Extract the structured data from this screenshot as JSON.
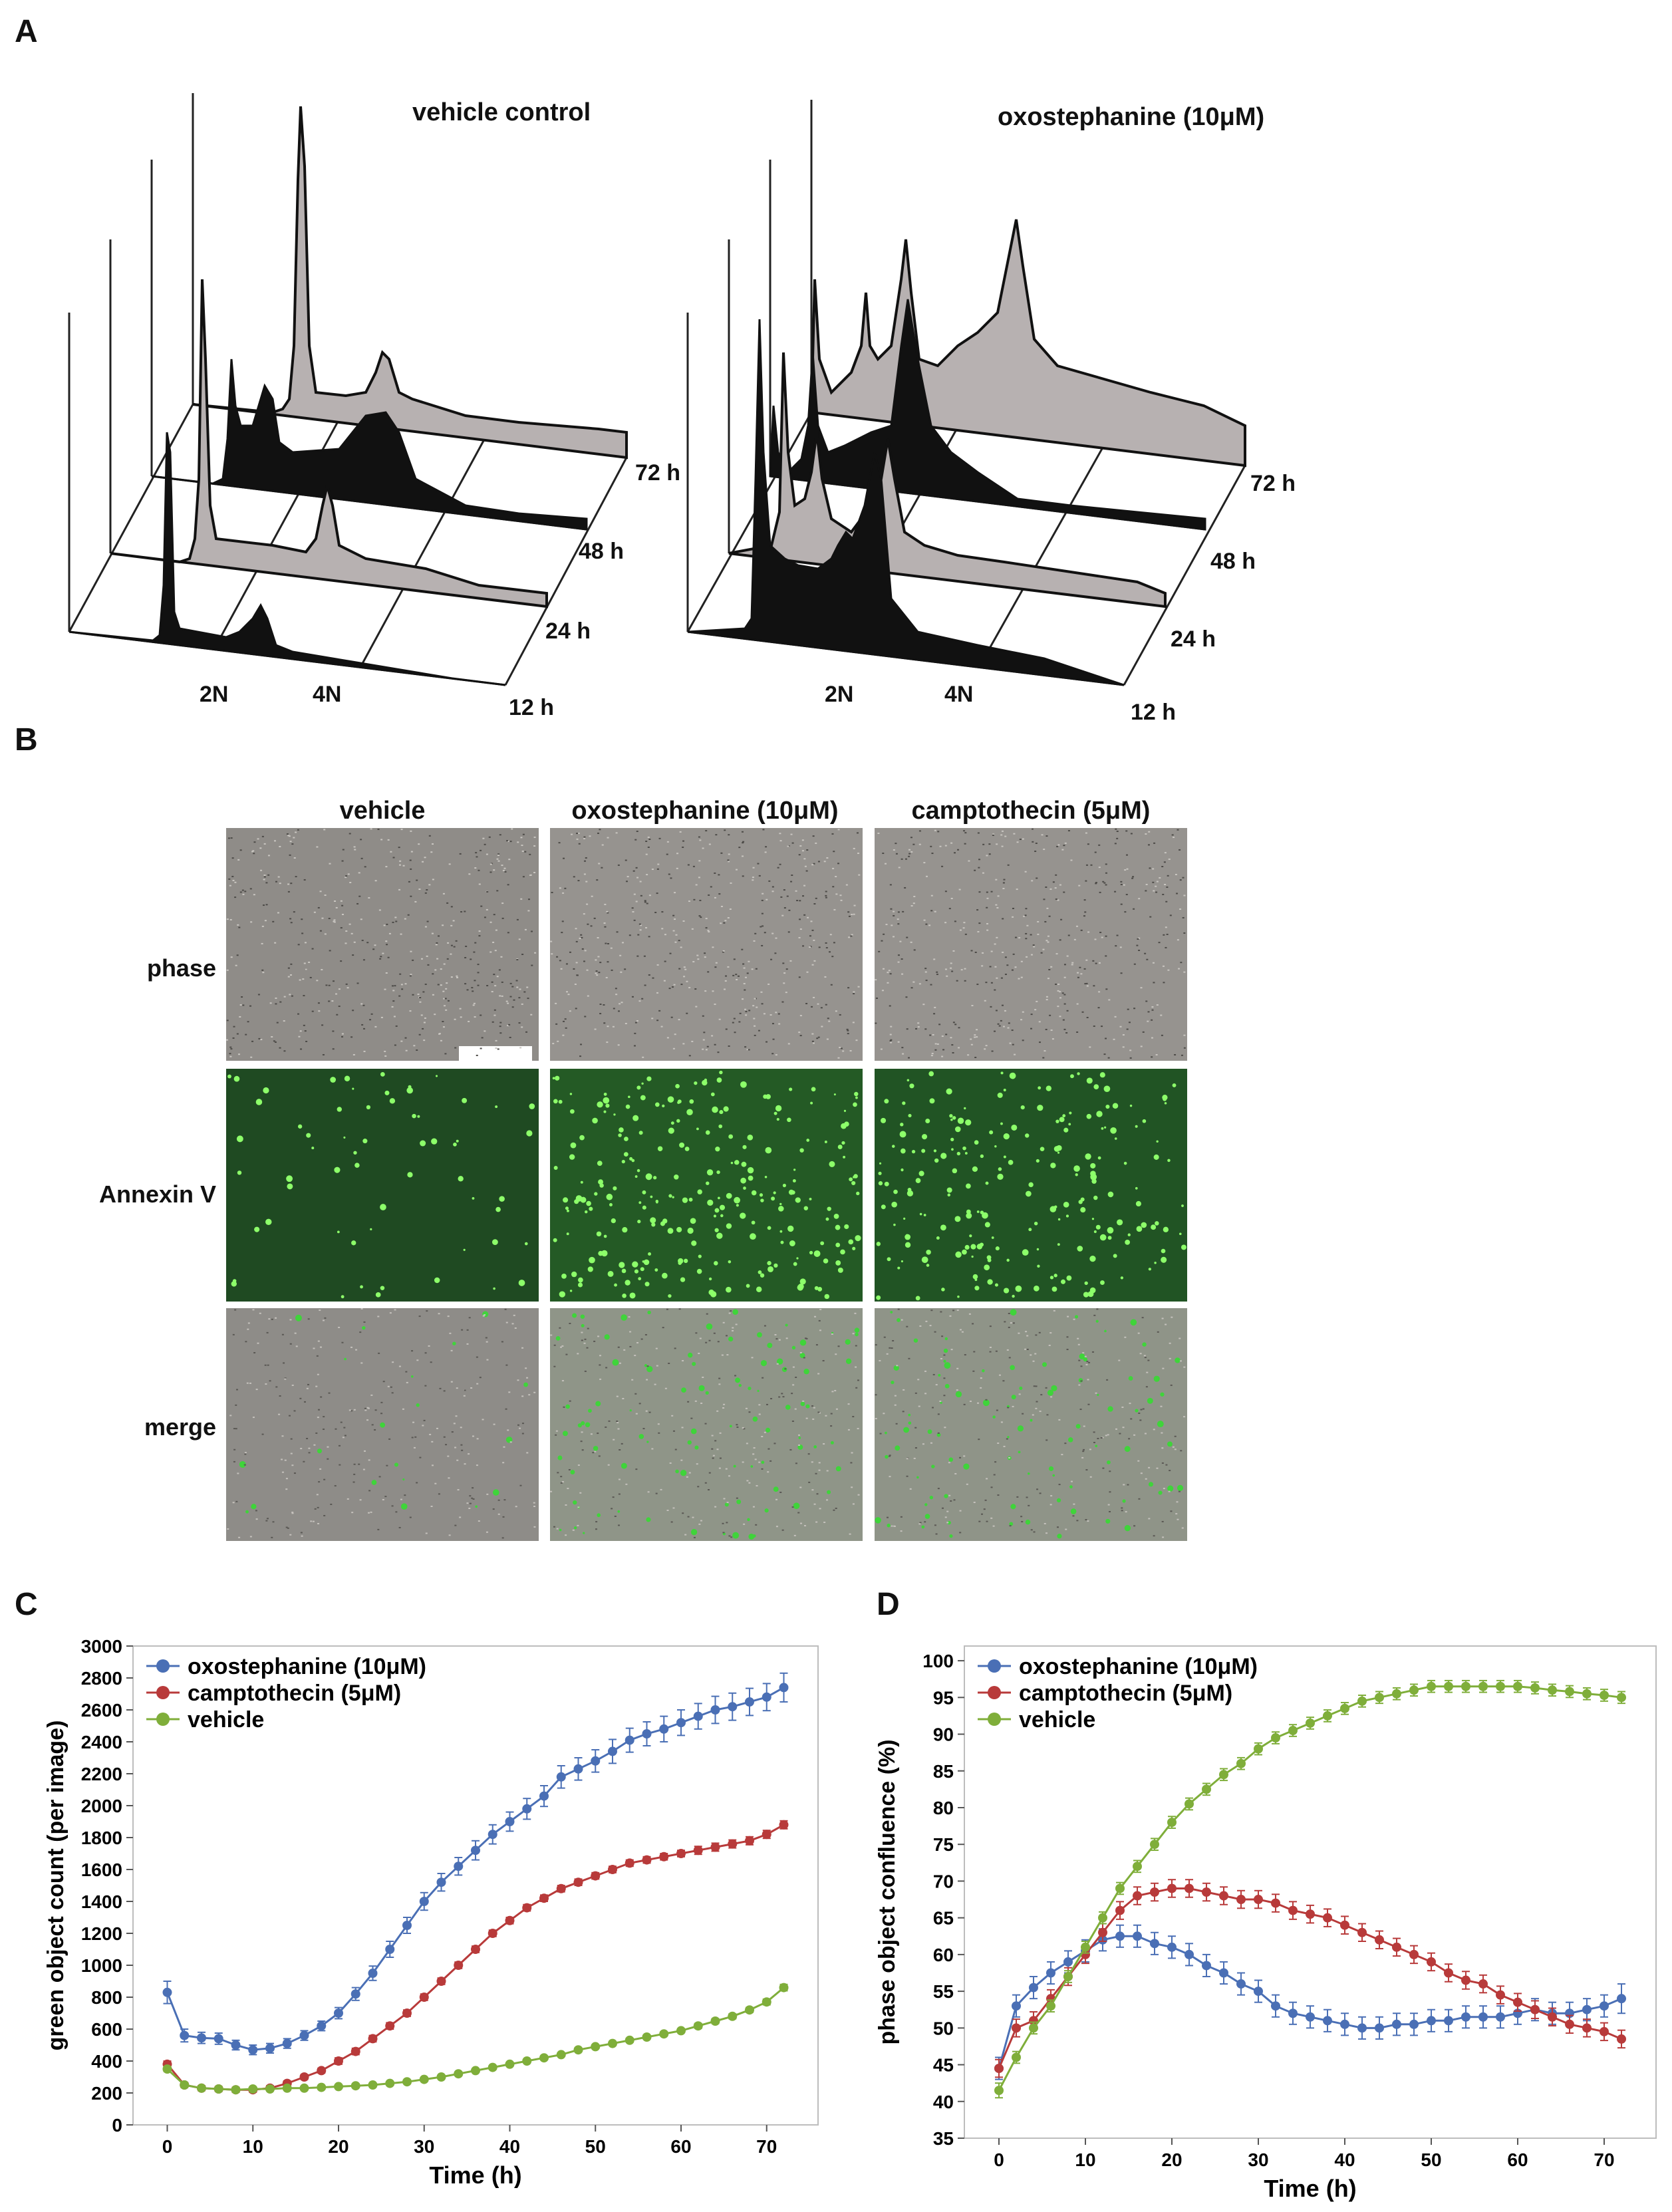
{
  "panelA": {
    "letter": "A",
    "left": {
      "title": "vehicle control",
      "time_labels": [
        "72 h",
        "48 h",
        "24 h",
        "12 h"
      ],
      "x_labels": [
        "2N",
        "4N"
      ]
    },
    "right": {
      "title": "oxostephanine (10μM)",
      "time_labels": [
        "72 h",
        "48 h",
        "24 h",
        "12 h"
      ],
      "x_labels": [
        "2N",
        "4N"
      ]
    }
  },
  "panelB": {
    "letter": "B",
    "columns": [
      "vehicle",
      "oxostephanine (10μM)",
      "camptothecin (5μM)"
    ],
    "rows": [
      "phase",
      "Annexin V",
      "merge"
    ]
  },
  "panelC": {
    "letter": "C",
    "ylabel": "green object count (per image)",
    "xlabel": "Time (h)"
  },
  "panelD": {
    "letter": "D",
    "ylabel": "phase object confluence (%)",
    "xlabel": "Time (h)"
  },
  "colors": {
    "oxo": "#4a6fb5",
    "campto": "#b83a3a",
    "vehicle": "#7fae3a"
  },
  "chart_data": [
    {
      "type": "line",
      "title": "",
      "xlabel": "Time (h)",
      "ylabel": "green object count (per image)",
      "xlim": [
        -4,
        76
      ],
      "ylim": [
        0,
        3000
      ],
      "xticks": [
        0,
        10,
        20,
        30,
        40,
        50,
        60,
        70
      ],
      "yticks": [
        0,
        200,
        400,
        600,
        800,
        1000,
        1200,
        1400,
        1600,
        1800,
        2000,
        2200,
        2400,
        2600,
        2800,
        3000
      ],
      "legend": "top-left",
      "x": [
        0,
        2,
        4,
        6,
        8,
        10,
        12,
        14,
        16,
        18,
        20,
        22,
        24,
        26,
        28,
        30,
        32,
        34,
        36,
        38,
        40,
        42,
        44,
        46,
        48,
        50,
        52,
        54,
        56,
        58,
        60,
        62,
        64,
        66,
        68,
        70,
        72
      ],
      "series": [
        {
          "name": "oxostephanine (10μM)",
          "color_key": "oxo",
          "values": [
            830,
            560,
            545,
            540,
            500,
            470,
            480,
            510,
            560,
            620,
            700,
            820,
            950,
            1100,
            1250,
            1400,
            1520,
            1620,
            1720,
            1820,
            1900,
            1980,
            2060,
            2180,
            2230,
            2280,
            2340,
            2410,
            2450,
            2480,
            2520,
            2560,
            2600,
            2620,
            2650,
            2680,
            2740
          ],
          "errors": [
            70,
            40,
            35,
            35,
            30,
            30,
            30,
            30,
            30,
            30,
            35,
            40,
            45,
            50,
            50,
            55,
            55,
            55,
            60,
            60,
            60,
            65,
            65,
            70,
            70,
            70,
            75,
            75,
            75,
            80,
            80,
            80,
            85,
            85,
            85,
            85,
            90
          ]
        },
        {
          "name": "camptothecin (5μM)",
          "color_key": "campto",
          "values": [
            380,
            250,
            230,
            225,
            220,
            220,
            230,
            260,
            300,
            340,
            400,
            460,
            540,
            620,
            700,
            800,
            900,
            1000,
            1100,
            1200,
            1280,
            1360,
            1420,
            1480,
            1520,
            1560,
            1600,
            1640,
            1660,
            1680,
            1700,
            1720,
            1740,
            1760,
            1780,
            1820,
            1880
          ],
          "errors": [
            20,
            15,
            15,
            15,
            15,
            15,
            15,
            15,
            15,
            15,
            20,
            20,
            20,
            20,
            20,
            20,
            20,
            20,
            20,
            20,
            20,
            20,
            20,
            20,
            20,
            20,
            20,
            20,
            20,
            20,
            20,
            25,
            25,
            25,
            25,
            25,
            25
          ]
        },
        {
          "name": "vehicle",
          "color_key": "vehicle",
          "values": [
            350,
            250,
            230,
            225,
            220,
            225,
            225,
            230,
            230,
            235,
            240,
            245,
            250,
            260,
            270,
            285,
            300,
            320,
            340,
            360,
            380,
            400,
            420,
            440,
            470,
            490,
            510,
            530,
            550,
            570,
            590,
            620,
            650,
            680,
            720,
            770,
            860
          ],
          "errors": [
            15,
            10,
            10,
            10,
            10,
            10,
            10,
            10,
            10,
            10,
            10,
            10,
            10,
            10,
            10,
            10,
            10,
            10,
            10,
            10,
            10,
            10,
            10,
            10,
            10,
            10,
            10,
            12,
            12,
            12,
            12,
            15,
            15,
            15,
            15,
            18,
            20
          ]
        }
      ]
    },
    {
      "type": "line",
      "title": "",
      "xlabel": "Time (h)",
      "ylabel": "phase object confluence (%)",
      "xlim": [
        -4,
        76
      ],
      "ylim": [
        35,
        102
      ],
      "xticks": [
        0,
        10,
        20,
        30,
        40,
        50,
        60,
        70
      ],
      "yticks": [
        35,
        40,
        45,
        50,
        55,
        60,
        65,
        70,
        75,
        80,
        85,
        90,
        95,
        100
      ],
      "legend": "top-left",
      "x": [
        0,
        2,
        4,
        6,
        8,
        10,
        12,
        14,
        16,
        18,
        20,
        22,
        24,
        26,
        28,
        30,
        32,
        34,
        36,
        38,
        40,
        42,
        44,
        46,
        48,
        50,
        52,
        54,
        56,
        58,
        60,
        62,
        64,
        66,
        68,
        70,
        72
      ],
      "series": [
        {
          "name": "oxostephanine (10μM)",
          "color_key": "oxo",
          "values": [
            44.5,
            53,
            55.5,
            57.5,
            59,
            60.5,
            62,
            62.5,
            62.5,
            61.5,
            61,
            60,
            58.5,
            57.5,
            56,
            55,
            53,
            52,
            51.5,
            51,
            50.5,
            50,
            50,
            50.5,
            50.5,
            51,
            51,
            51.5,
            51.5,
            51.5,
            52,
            52.5,
            52,
            52,
            52.5,
            53,
            54
          ],
          "errors": [
            1.5,
            1.5,
            1.5,
            1.5,
            1.5,
            1.5,
            1.5,
            1.5,
            1.5,
            1.5,
            1.5,
            1.5,
            1.5,
            1.5,
            1.5,
            1.5,
            1.5,
            1.5,
            1.5,
            1.5,
            1.5,
            1.5,
            1.5,
            1.5,
            1.5,
            1.5,
            1.5,
            1.5,
            1.5,
            1.5,
            1.5,
            1.5,
            1.5,
            1.5,
            1.5,
            1.5,
            2
          ]
        },
        {
          "name": "camptothecin (5μM)",
          "color_key": "campto",
          "values": [
            44.5,
            50,
            51,
            54,
            57,
            60,
            63,
            66,
            68,
            68.5,
            69,
            69,
            68.5,
            68,
            67.5,
            67.5,
            67,
            66,
            65.5,
            65,
            64,
            63,
            62,
            61,
            60,
            59,
            57.5,
            56.5,
            56,
            54.5,
            53.5,
            52.5,
            51.5,
            50.5,
            50,
            49.5,
            48.5
          ],
          "errors": [
            1.2,
            1.2,
            1.2,
            1.2,
            1.2,
            1.2,
            1.2,
            1.2,
            1.2,
            1.2,
            1.2,
            1.2,
            1.2,
            1.2,
            1.2,
            1.2,
            1.2,
            1.2,
            1.2,
            1.2,
            1.2,
            1.2,
            1.2,
            1.2,
            1.2,
            1.2,
            1.2,
            1.2,
            1.2,
            1.2,
            1.2,
            1.2,
            1.2,
            1.2,
            1.2,
            1.2,
            1.2
          ]
        },
        {
          "name": "vehicle",
          "color_key": "vehicle",
          "values": [
            41.5,
            46,
            50,
            53,
            57,
            61,
            65,
            69,
            72,
            75,
            78,
            80.5,
            82.5,
            84.5,
            86,
            88,
            89.5,
            90.5,
            91.5,
            92.5,
            93.5,
            94.5,
            95,
            95.5,
            96,
            96.5,
            96.5,
            96.5,
            96.5,
            96.5,
            96.5,
            96.3,
            96,
            95.8,
            95.5,
            95.3,
            95
          ],
          "errors": [
            1,
            0.8,
            0.8,
            0.8,
            0.8,
            0.8,
            0.8,
            0.8,
            0.8,
            0.8,
            0.8,
            0.8,
            0.8,
            0.8,
            0.8,
            0.8,
            0.8,
            0.8,
            0.8,
            0.8,
            0.8,
            0.8,
            0.8,
            0.8,
            0.8,
            0.8,
            0.8,
            0.8,
            0.8,
            0.8,
            0.8,
            0.8,
            0.8,
            0.8,
            0.8,
            0.8,
            0.8
          ]
        }
      ]
    }
  ]
}
